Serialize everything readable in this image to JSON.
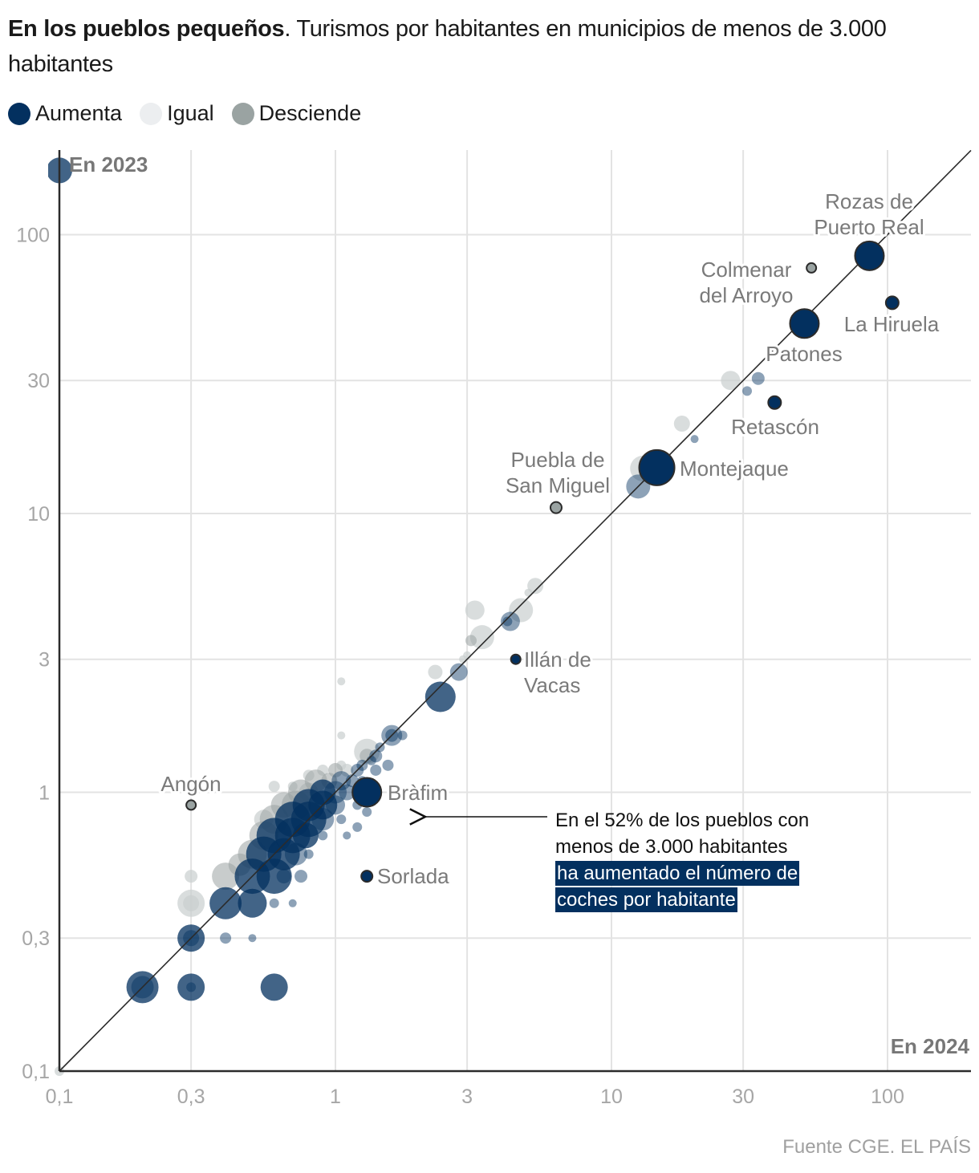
{
  "title": {
    "bold": "En los pueblos pequeños",
    "rest": ". Turismos por habitantes en municipios de menos de 3.000 habitantes"
  },
  "legend": [
    {
      "label": "Aumenta",
      "color": "#03305f"
    },
    {
      "label": "Igual",
      "color": "#eceef0"
    },
    {
      "label": "Desciende",
      "color": "#9aa3a2"
    }
  ],
  "annotation": {
    "text": "En el 52% de los pueblos con menos de 3.000 habitantes",
    "highlight": " ha aumentado el número de coches por habitante"
  },
  "source": "Fuente CGE. EL PAÍS",
  "colors": {
    "aumenta": "#03305f",
    "aumenta_light": "#6f8aa8",
    "igual": "#c9cecf",
    "desciende": "#9aa3a2",
    "grid": "#e3e3e3",
    "axis": "#2b2b2b"
  },
  "chart_data": {
    "type": "scatter",
    "title": "En los pueblos pequeños. Turismos por habitantes en municipios de menos de 3.000 habitantes",
    "xlabel": "En 2024",
    "ylabel": "En 2023",
    "xscale": "log",
    "yscale": "log",
    "xlim": [
      0.1,
      190
    ],
    "ylim": [
      0.1,
      170
    ],
    "xticks": [
      0.1,
      0.3,
      1,
      3,
      10,
      30,
      100
    ],
    "xtick_labels": [
      "0,1",
      "0,3",
      "1",
      "3",
      "10",
      "30",
      "100"
    ],
    "yticks": [
      0.1,
      0.3,
      1,
      3,
      10,
      30,
      100
    ],
    "ytick_labels": [
      "0,1",
      "0,3",
      "1",
      "3",
      "10",
      "30",
      "100"
    ],
    "grid": true,
    "reference_line": "y = x",
    "legend_position": "top-left",
    "highlighted": [
      {
        "name": "Rozas de Puerto Real",
        "lines": [
          "Rozas de",
          "Puerto Real"
        ],
        "x": 86,
        "y": 84,
        "category": "Aumenta",
        "size": 18
      },
      {
        "name": "Colmenar del Arroyo",
        "lines": [
          "Colmenar",
          "del Arroyo"
        ],
        "x": 53,
        "y": 76,
        "category": "Desciende",
        "size": 6
      },
      {
        "name": "La Hiruela",
        "lines": [
          "La Hiruela"
        ],
        "x": 104,
        "y": 57,
        "category": "Aumenta",
        "size": 8
      },
      {
        "name": "Patones",
        "lines": [
          "Patones"
        ],
        "x": 50,
        "y": 48,
        "category": "Aumenta",
        "size": 18
      },
      {
        "name": "Retascón",
        "lines": [
          "Retascón"
        ],
        "x": 39,
        "y": 25,
        "category": "Aumenta",
        "size": 8
      },
      {
        "name": "Montejaque",
        "lines": [
          "Montejaque"
        ],
        "x": 14.6,
        "y": 14.6,
        "category": "Aumenta",
        "size": 22
      },
      {
        "name": "Puebla de San Miguel",
        "lines": [
          "Puebla de",
          "San Miguel"
        ],
        "x": 6.3,
        "y": 10.5,
        "category": "Desciende",
        "size": 7
      },
      {
        "name": "Illán de Vacas",
        "lines": [
          "Illán de",
          "Vacas"
        ],
        "x": 4.5,
        "y": 3.0,
        "category": "Aumenta",
        "size": 6
      },
      {
        "name": "Bràfim",
        "lines": [
          "Bràfim"
        ],
        "x": 1.3,
        "y": 1.0,
        "category": "Aumenta",
        "size": 18
      },
      {
        "name": "Sorlada",
        "lines": [
          "Sorlada"
        ],
        "x": 1.3,
        "y": 0.5,
        "category": "Aumenta",
        "size": 7
      },
      {
        "name": "Angón",
        "lines": [
          "Angón"
        ],
        "x": 0.3,
        "y": 0.9,
        "category": "Desciende",
        "size": 6
      }
    ],
    "points": [
      {
        "x": 0.1,
        "y": 170,
        "c": "Aumenta",
        "s": 16
      },
      {
        "x": 0.1,
        "y": 0.1,
        "c": "Igual",
        "s": 6
      },
      {
        "x": 0.2,
        "y": 0.2,
        "c": "Aumenta",
        "s": 20
      },
      {
        "x": 0.2,
        "y": 0.2,
        "c": "Aumenta",
        "s": 14
      },
      {
        "x": 0.3,
        "y": 0.2,
        "c": "Aumenta",
        "s": 17
      },
      {
        "x": 0.3,
        "y": 0.2,
        "c": "Aumenta",
        "s": 6
      },
      {
        "x": 0.6,
        "y": 0.2,
        "c": "Aumenta",
        "s": 17
      },
      {
        "x": 0.3,
        "y": 0.3,
        "c": "Aumenta",
        "s": 17
      },
      {
        "x": 0.3,
        "y": 0.3,
        "c": "Aumenta",
        "s": 10
      },
      {
        "x": 0.4,
        "y": 0.3,
        "c": "Aumenta",
        "s": 7
      },
      {
        "x": 0.5,
        "y": 0.3,
        "c": "Aumenta",
        "s": 5
      },
      {
        "x": 0.3,
        "y": 0.4,
        "c": "Igual",
        "s": 17
      },
      {
        "x": 0.3,
        "y": 0.4,
        "c": "Igual",
        "s": 10
      },
      {
        "x": 0.4,
        "y": 0.4,
        "c": "Aumenta",
        "s": 20
      },
      {
        "x": 0.5,
        "y": 0.4,
        "c": "Aumenta",
        "s": 18
      },
      {
        "x": 0.6,
        "y": 0.4,
        "c": "Aumenta",
        "s": 6
      },
      {
        "x": 0.7,
        "y": 0.4,
        "c": "Aumenta",
        "s": 5
      },
      {
        "x": 0.3,
        "y": 0.5,
        "c": "Igual",
        "s": 8
      },
      {
        "x": 0.4,
        "y": 0.5,
        "c": "Desciende",
        "s": 17
      },
      {
        "x": 0.5,
        "y": 0.5,
        "c": "Aumenta",
        "s": 22
      },
      {
        "x": 0.6,
        "y": 0.5,
        "c": "Aumenta",
        "s": 22
      },
      {
        "x": 0.65,
        "y": 0.5,
        "c": "Aumenta",
        "s": 9
      },
      {
        "x": 0.75,
        "y": 0.5,
        "c": "Aumenta",
        "s": 8
      },
      {
        "x": 0.45,
        "y": 0.55,
        "c": "Desciende",
        "s": 14
      },
      {
        "x": 0.5,
        "y": 0.6,
        "c": "Desciende",
        "s": 18
      },
      {
        "x": 0.55,
        "y": 0.6,
        "c": "Aumenta",
        "s": 22
      },
      {
        "x": 0.65,
        "y": 0.6,
        "c": "Aumenta",
        "s": 20
      },
      {
        "x": 0.72,
        "y": 0.6,
        "c": "Aumenta",
        "s": 14
      },
      {
        "x": 0.8,
        "y": 0.6,
        "c": "Aumenta",
        "s": 6
      },
      {
        "x": 0.55,
        "y": 0.7,
        "c": "Desciende",
        "s": 18
      },
      {
        "x": 0.6,
        "y": 0.7,
        "c": "Aumenta",
        "s": 22
      },
      {
        "x": 0.7,
        "y": 0.7,
        "c": "Aumenta",
        "s": 22
      },
      {
        "x": 0.78,
        "y": 0.7,
        "c": "Aumenta",
        "s": 16
      },
      {
        "x": 0.9,
        "y": 0.7,
        "c": "Aumenta",
        "s": 6
      },
      {
        "x": 0.6,
        "y": 0.8,
        "c": "Desciende",
        "s": 18
      },
      {
        "x": 0.55,
        "y": 0.8,
        "c": "Igual",
        "s": 12
      },
      {
        "x": 0.7,
        "y": 0.8,
        "c": "Aumenta",
        "s": 22
      },
      {
        "x": 0.8,
        "y": 0.8,
        "c": "Aumenta",
        "s": 22
      },
      {
        "x": 0.9,
        "y": 0.8,
        "c": "Aumenta",
        "s": 14
      },
      {
        "x": 1.05,
        "y": 0.8,
        "c": "Aumenta",
        "s": 6
      },
      {
        "x": 0.65,
        "y": 0.9,
        "c": "Desciende",
        "s": 16
      },
      {
        "x": 0.72,
        "y": 0.9,
        "c": "Desciende",
        "s": 18
      },
      {
        "x": 0.8,
        "y": 0.9,
        "c": "Aumenta",
        "s": 20
      },
      {
        "x": 0.9,
        "y": 0.9,
        "c": "Aumenta",
        "s": 18
      },
      {
        "x": 1.0,
        "y": 0.9,
        "c": "Aumenta",
        "s": 12
      },
      {
        "x": 1.2,
        "y": 0.9,
        "c": "Aumenta",
        "s": 6
      },
      {
        "x": 0.75,
        "y": 1.0,
        "c": "Desciende",
        "s": 16
      },
      {
        "x": 0.8,
        "y": 1.0,
        "c": "Igual",
        "s": 12
      },
      {
        "x": 0.9,
        "y": 1.0,
        "c": "Aumenta",
        "s": 16
      },
      {
        "x": 1.0,
        "y": 1.0,
        "c": "Aumenta",
        "s": 14
      },
      {
        "x": 1.1,
        "y": 1.0,
        "c": "Aumenta",
        "s": 10
      },
      {
        "x": 0.85,
        "y": 1.1,
        "c": "Desciende",
        "s": 14
      },
      {
        "x": 0.95,
        "y": 1.1,
        "c": "Desciende",
        "s": 10
      },
      {
        "x": 1.05,
        "y": 1.1,
        "c": "Aumenta",
        "s": 12
      },
      {
        "x": 1.15,
        "y": 1.1,
        "c": "Aumenta",
        "s": 8
      },
      {
        "x": 0.7,
        "y": 1.05,
        "c": "Igual",
        "s": 6
      },
      {
        "x": 1.0,
        "y": 1.2,
        "c": "Desciende",
        "s": 9
      },
      {
        "x": 1.1,
        "y": 1.2,
        "c": "Igual",
        "s": 8
      },
      {
        "x": 1.2,
        "y": 1.2,
        "c": "Aumenta",
        "s": 8
      },
      {
        "x": 1.25,
        "y": 1.25,
        "c": "Aumenta",
        "s": 7
      },
      {
        "x": 1.4,
        "y": 1.2,
        "c": "Aumenta",
        "s": 7
      },
      {
        "x": 1.3,
        "y": 1.4,
        "c": "Igual",
        "s": 16
      },
      {
        "x": 1.3,
        "y": 1.35,
        "c": "Desciende",
        "s": 9
      },
      {
        "x": 1.4,
        "y": 1.35,
        "c": "Aumenta",
        "s": 8
      },
      {
        "x": 1.35,
        "y": 1.3,
        "c": "Aumenta",
        "s": 6
      },
      {
        "x": 1.55,
        "y": 1.25,
        "c": "Aumenta",
        "s": 7
      },
      {
        "x": 1.6,
        "y": 1.6,
        "c": "Aumenta",
        "s": 13
      },
      {
        "x": 1.6,
        "y": 1.6,
        "c": "Aumenta",
        "s": 8
      },
      {
        "x": 1.75,
        "y": 1.6,
        "c": "Aumenta",
        "s": 6
      },
      {
        "x": 1.45,
        "y": 1.45,
        "c": "Aumenta",
        "s": 6
      },
      {
        "x": 1.25,
        "y": 1.1,
        "c": "Aumenta",
        "s": 6
      },
      {
        "x": 1.2,
        "y": 0.75,
        "c": "Aumenta",
        "s": 6
      },
      {
        "x": 1.3,
        "y": 0.85,
        "c": "Aumenta",
        "s": 6
      },
      {
        "x": 1.1,
        "y": 0.7,
        "c": "Aumenta",
        "s": 5
      },
      {
        "x": 0.8,
        "y": 1.15,
        "c": "Igual",
        "s": 7
      },
      {
        "x": 0.9,
        "y": 1.2,
        "c": "Igual",
        "s": 7
      },
      {
        "x": 1.05,
        "y": 1.25,
        "c": "Igual",
        "s": 6
      },
      {
        "x": 0.6,
        "y": 1.05,
        "c": "Igual",
        "s": 7
      },
      {
        "x": 1.05,
        "y": 1.6,
        "c": "Igual",
        "s": 5
      },
      {
        "x": 1.05,
        "y": 2.5,
        "c": "Igual",
        "s": 5
      },
      {
        "x": 2.4,
        "y": 2.2,
        "c": "Aumenta",
        "s": 19
      },
      {
        "x": 2.8,
        "y": 2.7,
        "c": "Aumenta",
        "s": 11
      },
      {
        "x": 2.3,
        "y": 2.7,
        "c": "Igual",
        "s": 9
      },
      {
        "x": 2.9,
        "y": 3.0,
        "c": "Igual",
        "s": 5
      },
      {
        "x": 3.0,
        "y": 3.1,
        "c": "Igual",
        "s": 5
      },
      {
        "x": 3.1,
        "y": 3.5,
        "c": "Desciende",
        "s": 7
      },
      {
        "x": 3.4,
        "y": 3.6,
        "c": "Igual",
        "s": 15
      },
      {
        "x": 3.2,
        "y": 4.5,
        "c": "Igual",
        "s": 12
      },
      {
        "x": 4.3,
        "y": 4.1,
        "c": "Aumenta",
        "s": 12
      },
      {
        "x": 4.2,
        "y": 4.1,
        "c": "Aumenta",
        "s": 6
      },
      {
        "x": 4.7,
        "y": 4.5,
        "c": "Igual",
        "s": 15
      },
      {
        "x": 5.0,
        "y": 5.2,
        "c": "Igual",
        "s": 5
      },
      {
        "x": 5.3,
        "y": 5.5,
        "c": "Igual",
        "s": 10
      },
      {
        "x": 13,
        "y": 14.5,
        "c": "Igual",
        "s": 16
      },
      {
        "x": 12.5,
        "y": 12.5,
        "c": "Aumenta",
        "s": 15
      },
      {
        "x": 18,
        "y": 21,
        "c": "Igual",
        "s": 10
      },
      {
        "x": 20,
        "y": 18.5,
        "c": "Aumenta",
        "s": 5
      },
      {
        "x": 27,
        "y": 30,
        "c": "Igual",
        "s": 12
      },
      {
        "x": 31,
        "y": 27.5,
        "c": "Aumenta",
        "s": 6
      },
      {
        "x": 34,
        "y": 30.5,
        "c": "Aumenta",
        "s": 8
      }
    ]
  }
}
